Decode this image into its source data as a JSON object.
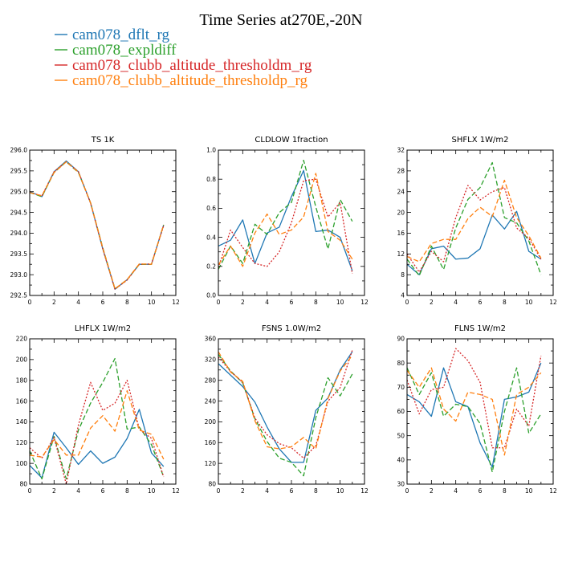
{
  "figure_title": "Time Series at270E,-20N",
  "colors": {
    "dflt": "#1f77b4",
    "expldiff": "#2ca02c",
    "threshm": "#d62728",
    "threshp": "#ff7f0e"
  },
  "legend": [
    {
      "label": "cam078_dflt_rg",
      "color": "#1f77b4",
      "style": "solid"
    },
    {
      "label": "cam078_expldiff",
      "color": "#2ca02c",
      "style": "dashed"
    },
    {
      "label": "cam078_clubb_altitude_thresholdm_rg",
      "color": "#d62728",
      "style": "dotted"
    },
    {
      "label": "cam078_clubb_altitude_thresholdp_rg",
      "color": "#ff7f0e",
      "style": "dashed"
    }
  ],
  "chart_data": [
    {
      "type": "line",
      "title": "TS   1K",
      "x": [
        0,
        1,
        2,
        3,
        4,
        5,
        6,
        7,
        8,
        9,
        10,
        11
      ],
      "xlim": [
        0,
        12
      ],
      "xticks": [
        "0",
        "2",
        "4",
        "6",
        "8",
        "10",
        "12"
      ],
      "ylim": [
        292.5,
        296.0
      ],
      "yticks": [
        "292.5",
        "293.0",
        "293.5",
        "294.0",
        "294.5",
        "295.0",
        "295.5",
        "296.0"
      ],
      "series": [
        {
          "name": "cam078_dflt_rg",
          "values": [
            295.0,
            294.88,
            295.48,
            295.74,
            295.48,
            294.73,
            293.62,
            292.65,
            292.88,
            293.25,
            293.25,
            294.2
          ]
        },
        {
          "name": "cam078_expldiff",
          "values": [
            294.98,
            294.88,
            295.46,
            295.72,
            295.46,
            294.73,
            293.65,
            292.66,
            292.88,
            293.25,
            293.25,
            294.2
          ]
        },
        {
          "name": "cam078_clubb_altitude_thresholdm_rg",
          "values": [
            294.98,
            294.9,
            295.48,
            295.72,
            295.48,
            294.72,
            293.62,
            292.65,
            292.87,
            293.25,
            293.26,
            294.18
          ]
        },
        {
          "name": "cam078_clubb_altitude_thresholdp_rg",
          "values": [
            294.98,
            294.9,
            295.46,
            295.72,
            295.47,
            294.73,
            293.64,
            292.66,
            292.88,
            293.26,
            293.25,
            294.2
          ]
        }
      ]
    },
    {
      "type": "line",
      "title": "CLDLOW   1fraction",
      "x": [
        0,
        1,
        2,
        3,
        4,
        5,
        6,
        7,
        8,
        9,
        10,
        11
      ],
      "xlim": [
        0,
        12
      ],
      "xticks": [
        "0",
        "2",
        "4",
        "6",
        "8",
        "10",
        "12"
      ],
      "ylim": [
        0.0,
        1.0
      ],
      "yticks": [
        "0.0",
        "0.2",
        "0.4",
        "0.6",
        "0.8",
        "1.0"
      ],
      "series": [
        {
          "name": "cam078_dflt_rg",
          "values": [
            0.34,
            0.38,
            0.52,
            0.22,
            0.43,
            0.47,
            0.68,
            0.86,
            0.44,
            0.45,
            0.4,
            0.17
          ]
        },
        {
          "name": "cam078_expldiff",
          "values": [
            0.18,
            0.34,
            0.22,
            0.49,
            0.42,
            0.57,
            0.64,
            0.93,
            0.61,
            0.32,
            0.66,
            0.51
          ]
        },
        {
          "name": "cam078_clubb_altitude_thresholdm_rg",
          "values": [
            0.19,
            0.45,
            0.33,
            0.22,
            0.2,
            0.3,
            0.5,
            0.79,
            0.8,
            0.54,
            0.64,
            0.15
          ]
        },
        {
          "name": "cam078_clubb_altitude_thresholdp_rg",
          "values": [
            0.21,
            0.34,
            0.2,
            0.43,
            0.56,
            0.42,
            0.45,
            0.54,
            0.84,
            0.44,
            0.38,
            0.25
          ]
        }
      ]
    },
    {
      "type": "line",
      "title": "SHFLX   1W/m2",
      "x": [
        0,
        1,
        2,
        3,
        4,
        5,
        6,
        7,
        8,
        9,
        10,
        11
      ],
      "xlim": [
        0,
        12
      ],
      "xticks": [
        "0",
        "2",
        "4",
        "6",
        "8",
        "10",
        "12"
      ],
      "ylim": [
        4,
        32
      ],
      "yticks": [
        "4",
        "8",
        "12",
        "16",
        "20",
        "24",
        "28",
        "32"
      ],
      "series": [
        {
          "name": "cam078_dflt_rg",
          "values": [
            10.0,
            8.0,
            13.0,
            13.5,
            11.0,
            11.2,
            13.0,
            19.5,
            16.8,
            20.2,
            12.5,
            11.0
          ]
        },
        {
          "name": "cam078_expldiff",
          "values": [
            11.0,
            7.8,
            13.5,
            9.0,
            17.0,
            22.5,
            24.8,
            29.6,
            19.0,
            18.0,
            14.5,
            8.0
          ]
        },
        {
          "name": "cam078_clubb_altitude_thresholdm_rg",
          "values": [
            12.0,
            8.5,
            12.5,
            10.5,
            19.0,
            25.2,
            22.4,
            24.0,
            24.8,
            17.0,
            15.0,
            11.0
          ]
        },
        {
          "name": "cam078_clubb_altitude_thresholdp_rg",
          "values": [
            11.5,
            10.5,
            14.0,
            14.8,
            14.8,
            18.8,
            21.0,
            19.2,
            26.2,
            19.0,
            15.5,
            11.2
          ]
        }
      ]
    },
    {
      "type": "line",
      "title": "LHFLX   1W/m2",
      "x": [
        0,
        1,
        2,
        3,
        4,
        5,
        6,
        7,
        8,
        9,
        10,
        11
      ],
      "xlim": [
        0,
        12
      ],
      "xticks": [
        "0",
        "2",
        "4",
        "6",
        "8",
        "10",
        "12"
      ],
      "ylim": [
        80,
        220
      ],
      "yticks": [
        "80",
        "100",
        "120",
        "140",
        "160",
        "180",
        "200",
        "220"
      ],
      "series": [
        {
          "name": "cam078_dflt_rg",
          "values": [
            98,
            86,
            130,
            115,
            99,
            112,
            100,
            106,
            124,
            152,
            110,
            97
          ]
        },
        {
          "name": "cam078_expldiff",
          "values": [
            112,
            85,
            126,
            85,
            132,
            158,
            178,
            201,
            133,
            135,
            118,
            87
          ]
        },
        {
          "name": "cam078_clubb_altitude_thresholdm_rg",
          "values": [
            115,
            105,
            125,
            80,
            137,
            178,
            151,
            158,
            180,
            133,
            124,
            87
          ]
        },
        {
          "name": "cam078_clubb_altitude_thresholdp_rg",
          "values": [
            108,
            106,
            123,
            108,
            108,
            134,
            146,
            131,
            170,
            132,
            128,
            104
          ]
        }
      ]
    },
    {
      "type": "line",
      "title": "FSNS   1.0W/m2",
      "x": [
        0,
        1,
        2,
        3,
        4,
        5,
        6,
        7,
        8,
        9,
        10,
        11
      ],
      "xlim": [
        0,
        12
      ],
      "xticks": [
        "0",
        "2",
        "4",
        "6",
        "8",
        "10",
        "12"
      ],
      "ylim": [
        80,
        360
      ],
      "yticks": [
        "80",
        "120",
        "160",
        "200",
        "240",
        "280",
        "320",
        "360"
      ],
      "series": [
        {
          "name": "cam078_dflt_rg",
          "values": [
            312,
            290,
            268,
            238,
            190,
            148,
            122,
            122,
            222,
            246,
            300,
            335
          ]
        },
        {
          "name": "cam078_expldiff",
          "values": [
            330,
            298,
            275,
            206,
            162,
            130,
            122,
            96,
            208,
            285,
            250,
            292
          ]
        },
        {
          "name": "cam078_clubb_altitude_thresholdm_rg",
          "values": [
            325,
            297,
            276,
            207,
            175,
            158,
            150,
            130,
            154,
            240,
            266,
            338
          ]
        },
        {
          "name": "cam078_clubb_altitude_thresholdp_rg",
          "values": [
            335,
            296,
            278,
            202,
            152,
            148,
            152,
            170,
            148,
            245,
            298,
            328
          ]
        }
      ]
    },
    {
      "type": "line",
      "title": "FLNS   1W/m2",
      "x": [
        0,
        1,
        2,
        3,
        4,
        5,
        6,
        7,
        8,
        9,
        10,
        11
      ],
      "xlim": [
        0,
        12
      ],
      "xticks": [
        "0",
        "2",
        "4",
        "6",
        "8",
        "10",
        "12"
      ],
      "ylim": [
        30,
        90
      ],
      "yticks": [
        "30",
        "40",
        "50",
        "60",
        "70",
        "80",
        "90"
      ],
      "series": [
        {
          "name": "cam078_dflt_rg",
          "values": [
            67,
            64,
            58,
            78,
            64,
            62,
            47,
            37,
            65,
            66,
            68,
            80
          ]
        },
        {
          "name": "cam078_expldiff",
          "values": [
            78,
            67,
            76,
            58,
            63,
            62,
            55,
            35,
            60,
            78,
            51,
            59
          ]
        },
        {
          "name": "cam078_clubb_altitude_thresholdm_rg",
          "values": [
            73,
            59,
            69,
            70,
            86,
            81,
            72,
            45,
            45,
            61,
            54,
            83
          ]
        },
        {
          "name": "cam078_clubb_altitude_thresholdp_rg",
          "values": [
            77,
            70,
            78,
            61,
            56,
            68,
            67,
            65,
            42,
            67,
            70,
            76
          ]
        }
      ]
    }
  ]
}
